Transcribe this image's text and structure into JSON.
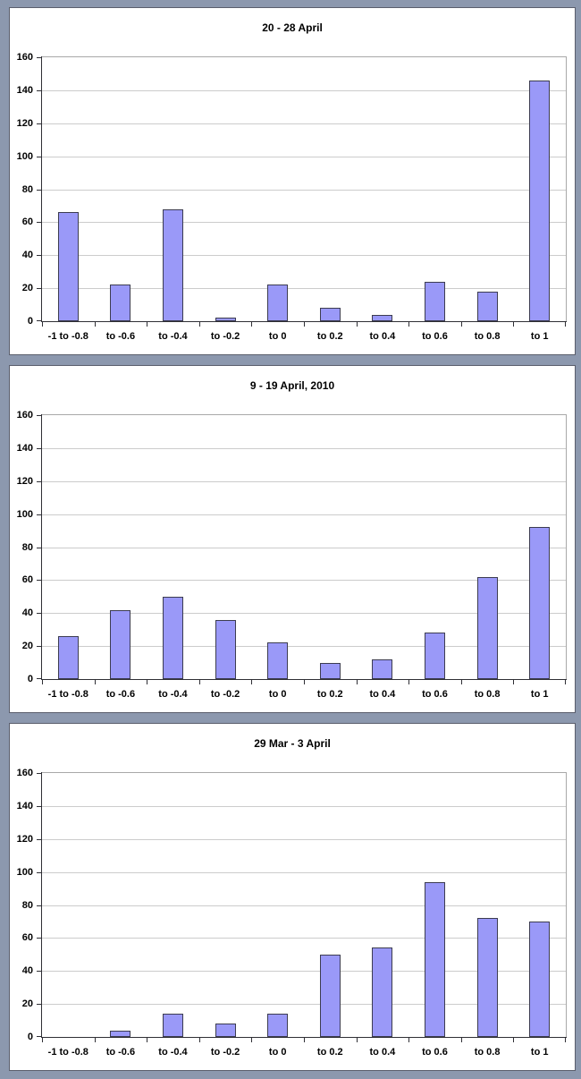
{
  "colors": {
    "frame_background": "#8c98ae",
    "panel_background": "#ffffff",
    "gridline": "#cccccc",
    "axis": "#2f2f35",
    "bar_fill": "#9a99f8",
    "bar_border": "#3c3c50"
  },
  "chart_data": [
    {
      "type": "bar",
      "title": "20 - 28 April",
      "categories": [
        "-1 to -0.8",
        "to -0.6",
        "to -0.4",
        "to -0.2",
        "to 0",
        "to 0.2",
        "to 0.4",
        "to 0.6",
        "to 0.8",
        "to 1"
      ],
      "values": [
        66,
        22,
        68,
        2,
        22,
        8,
        4,
        24,
        18,
        146
      ],
      "xlabel": "",
      "ylabel": "",
      "ylim": [
        0,
        160
      ],
      "ytick_step": 20,
      "ytick_labels": [
        "0",
        "20",
        "40",
        "60",
        "80",
        "100",
        "120",
        "140",
        "160"
      ],
      "grid": true,
      "legend": false,
      "bar_color": "#9a99f8",
      "bar_border_color": "#3c3c50"
    },
    {
      "type": "bar",
      "title": "9 - 19 April, 2010",
      "categories": [
        "-1 to -0.8",
        "to -0.6",
        "to -0.4",
        "to -0.2",
        "to 0",
        "to 0.2",
        "to 0.4",
        "to 0.6",
        "to 0.8",
        "to 1"
      ],
      "values": [
        26,
        42,
        50,
        36,
        22,
        10,
        12,
        28,
        62,
        92
      ],
      "xlabel": "",
      "ylabel": "",
      "ylim": [
        0,
        160
      ],
      "ytick_step": 20,
      "ytick_labels": [
        "0",
        "20",
        "40",
        "60",
        "80",
        "100",
        "120",
        "140",
        "160"
      ],
      "grid": true,
      "legend": false,
      "bar_color": "#9a99f8",
      "bar_border_color": "#3c3c50"
    },
    {
      "type": "bar",
      "title": "29 Mar - 3 April",
      "categories": [
        "-1 to -0.8",
        "to -0.6",
        "to -0.4",
        "to -0.2",
        "to 0",
        "to 0.2",
        "to 0.4",
        "to 0.6",
        "to 0.8",
        "to 1"
      ],
      "values": [
        0,
        4,
        14,
        8,
        14,
        50,
        54,
        94,
        72,
        70
      ],
      "xlabel": "",
      "ylabel": "",
      "ylim": [
        0,
        160
      ],
      "ytick_step": 20,
      "ytick_labels": [
        "0",
        "20",
        "40",
        "60",
        "80",
        "100",
        "120",
        "140",
        "160"
      ],
      "grid": true,
      "legend": false,
      "bar_color": "#9a99f8",
      "bar_border_color": "#3c3c50"
    }
  ]
}
